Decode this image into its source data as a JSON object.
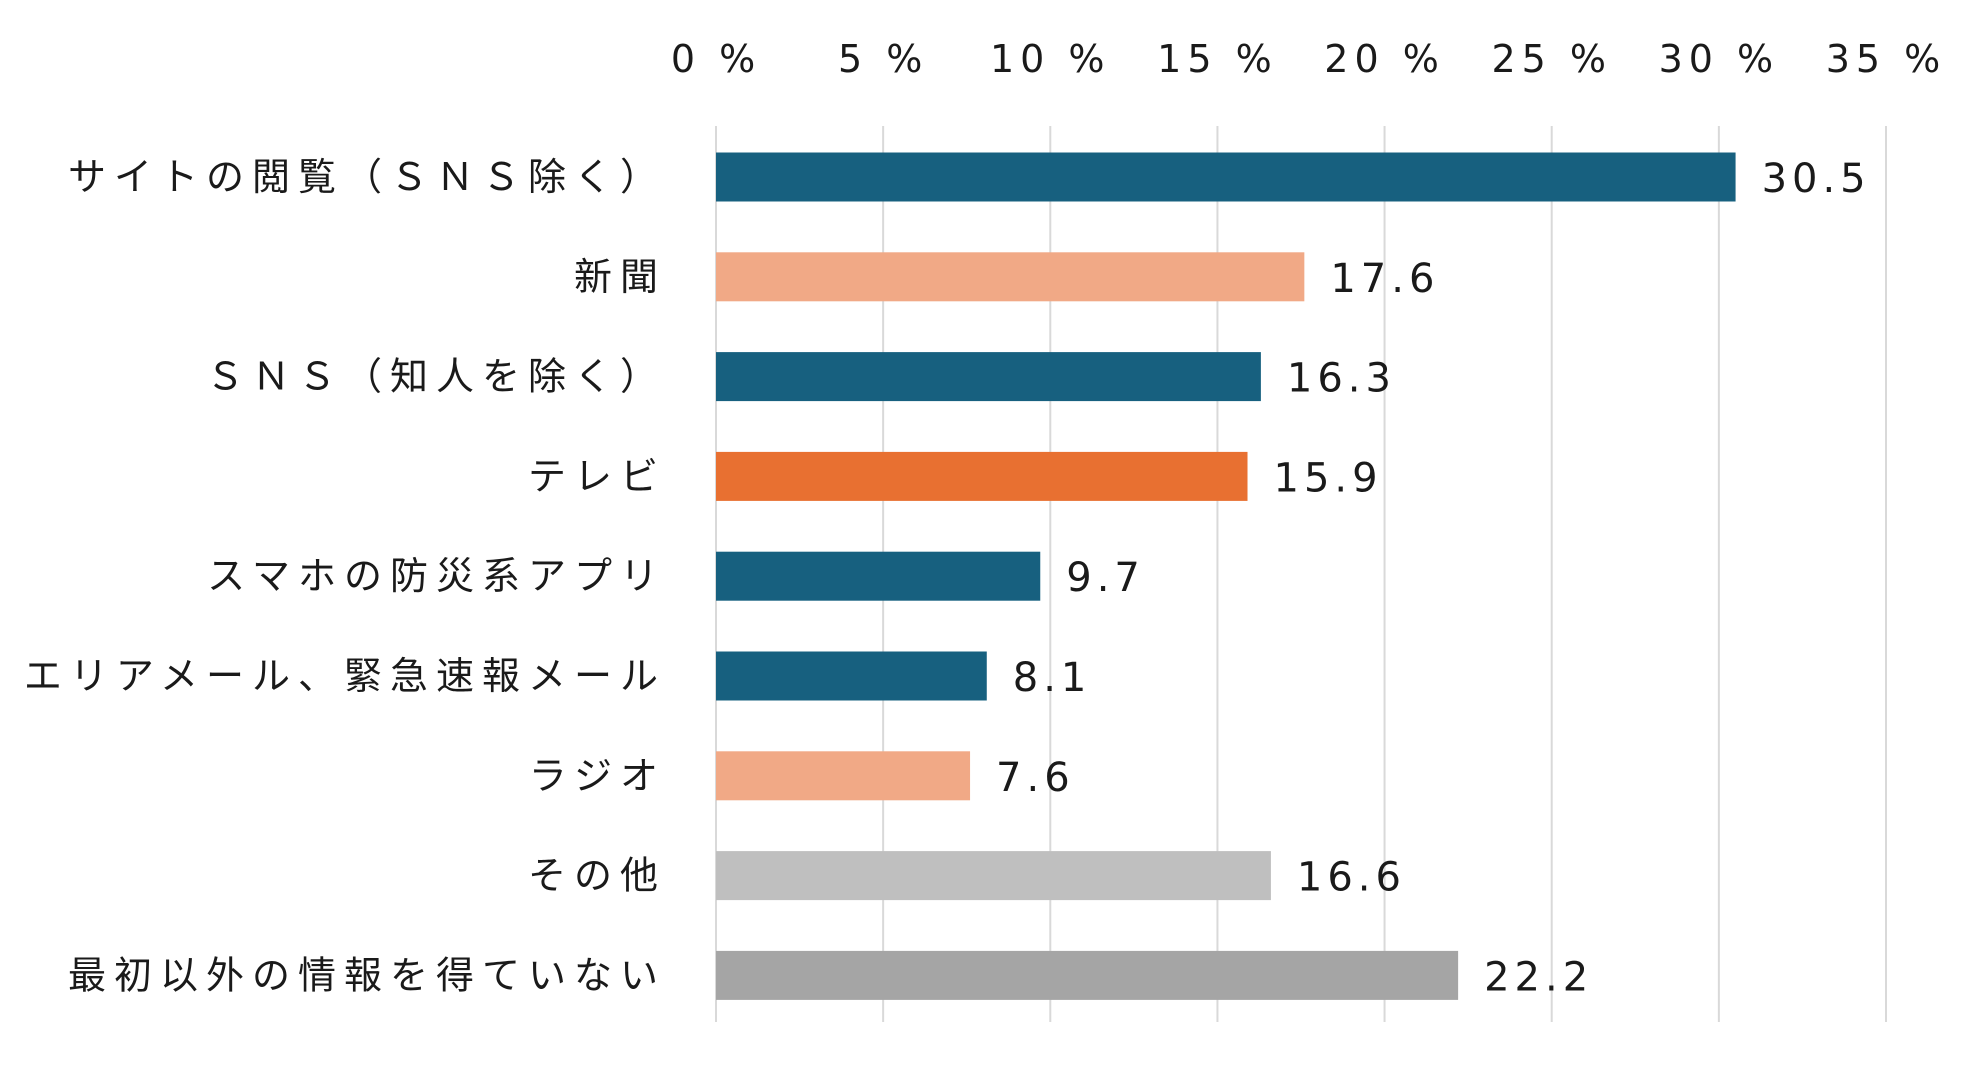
{
  "chart_data": {
    "type": "bar",
    "orientation": "horizontal",
    "title": "",
    "xlabel": "",
    "ylabel": "",
    "xlim": [
      0,
      35
    ],
    "x_ticks": [
      0,
      5,
      10,
      15,
      20,
      25,
      30,
      35
    ],
    "x_tick_labels": [
      "0 %",
      "5 %",
      "10 %",
      "15 %",
      "20 %",
      "25 %",
      "30 %",
      "35 %"
    ],
    "x_axis_position": "top",
    "grid": true,
    "legend": "none",
    "categories": [
      "サイトの閲覧（ＳＮＳ除く）",
      "新聞",
      "ＳＮＳ（知人を除く）",
      "テレビ",
      "スマホの防災系アプリ",
      "エリアメール、緊急速報メール",
      "ラジオ",
      "その他",
      "最初以外の情報を得ていない"
    ],
    "values": [
      30.5,
      17.6,
      16.3,
      15.9,
      9.7,
      8.1,
      7.6,
      16.6,
      22.2
    ],
    "value_labels": [
      "30.5",
      "17.6",
      "16.3",
      "15.9",
      "9.7",
      "8.1",
      "7.6",
      "16.6",
      "22.2"
    ],
    "colors": [
      "#17607f",
      "#f1a986",
      "#17607f",
      "#e87031",
      "#17607f",
      "#17607f",
      "#f1a986",
      "#bfbfbf",
      "#a5a5a5"
    ]
  }
}
